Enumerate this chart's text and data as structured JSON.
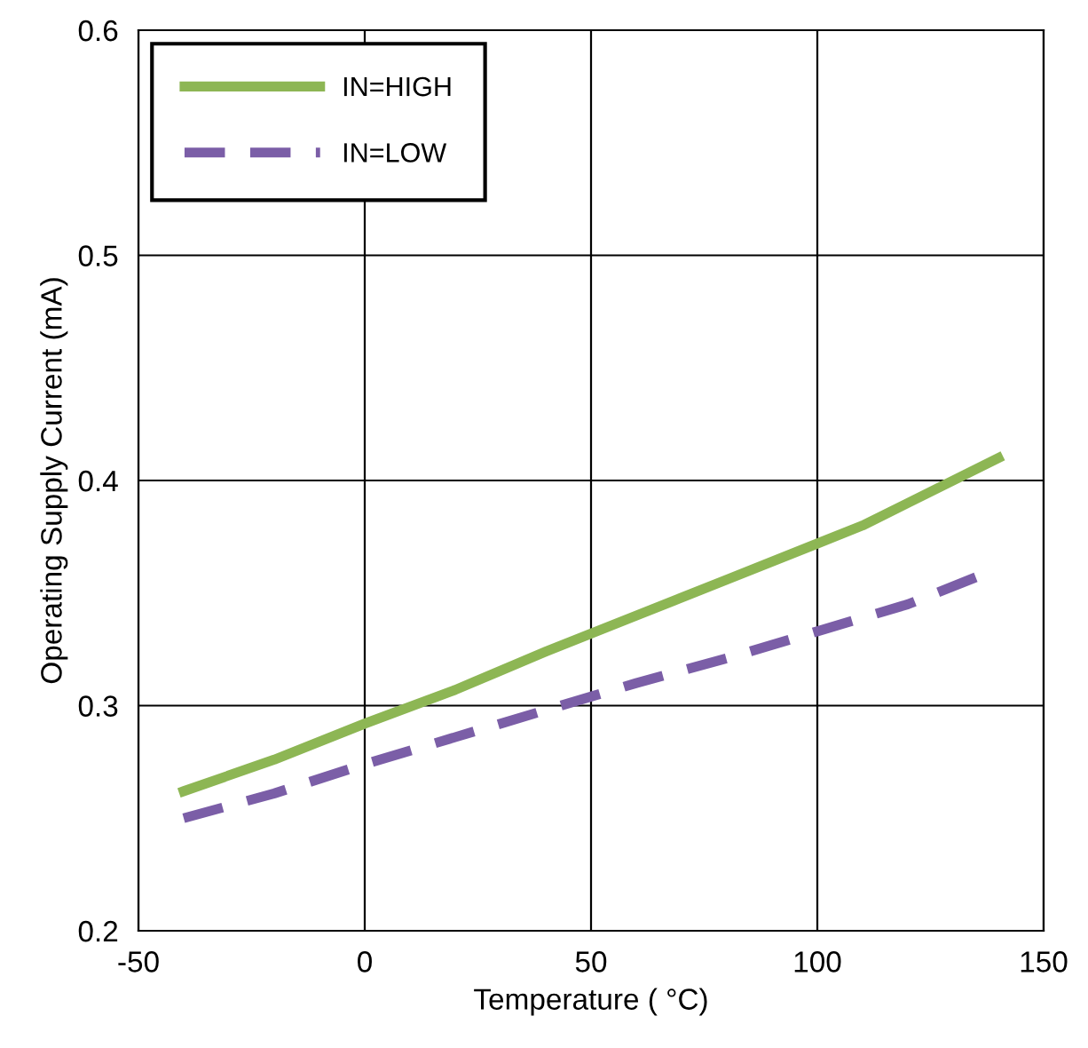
{
  "chart_data": {
    "type": "line",
    "xlabel": "Temperature ( °C)",
    "ylabel": "Operating Supply Current (mA)",
    "series": [
      {
        "name": "IN=HIGH",
        "color": "#8db654",
        "line_style": "solid",
        "x": [
          -40,
          -20,
          0,
          20,
          40,
          60,
          80,
          100,
          110,
          120,
          140
        ],
        "values": [
          0.262,
          0.276,
          0.292,
          0.307,
          0.324,
          0.34,
          0.356,
          0.372,
          0.38,
          0.39,
          0.41
        ]
      },
      {
        "name": "IN=LOW",
        "color": "#7b5ea7",
        "line_style": "dashed",
        "x": [
          -40,
          -20,
          0,
          20,
          40,
          60,
          80,
          100,
          120,
          135
        ],
        "values": [
          0.25,
          0.261,
          0.274,
          0.286,
          0.298,
          0.31,
          0.321,
          0.333,
          0.345,
          0.357
        ]
      }
    ],
    "xlim": [
      -50,
      150
    ],
    "xticks": [
      -50,
      0,
      50,
      100,
      150
    ],
    "ylim": [
      0.2,
      0.6
    ],
    "yticks": [
      0.2,
      0.3,
      0.4,
      0.5,
      0.6
    ],
    "grid": true,
    "legend": "top left",
    "marker": "none"
  }
}
